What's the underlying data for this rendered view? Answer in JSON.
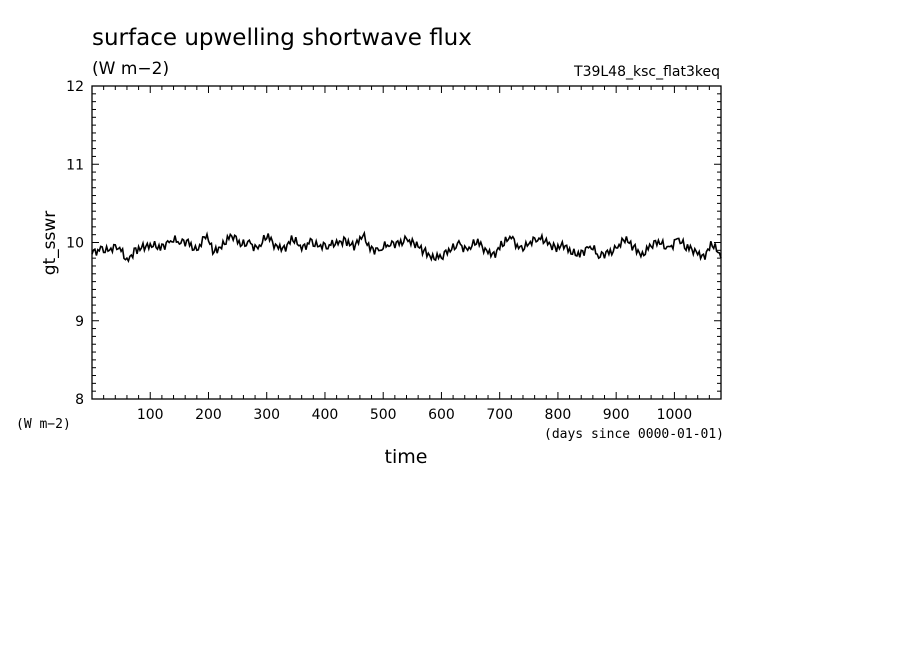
{
  "chart_data": {
    "type": "line",
    "title": "surface upwelling shortwave flux",
    "units": "(W m−2)",
    "run_name": "T39L48_ksc_flat3keq",
    "ylabel": "gt_sswr",
    "ylabel_units": "(W m−2)",
    "xlabel": "time",
    "xlabel_units": "(days since 0000-01-01)",
    "xlim": [
      0,
      1080
    ],
    "ylim": [
      8,
      12
    ],
    "xticks": [
      100,
      200,
      300,
      400,
      500,
      600,
      700,
      800,
      900,
      1000
    ],
    "yticks": [
      8,
      9,
      10,
      11,
      12
    ],
    "grid": false,
    "series": [
      {
        "x": [
          0,
          15,
          30,
          45,
          60,
          75,
          90,
          105,
          120,
          135,
          150,
          165,
          180,
          195,
          210,
          225,
          240,
          255,
          270,
          285,
          300,
          315,
          330,
          345,
          360,
          375,
          390,
          405,
          420,
          435,
          450,
          465,
          480,
          495,
          510,
          525,
          540,
          555,
          570,
          585,
          600,
          615,
          630,
          645,
          660,
          675,
          690,
          705,
          720,
          735,
          750,
          765,
          780,
          795,
          810,
          825,
          840,
          855,
          870,
          885,
          900,
          915,
          930,
          945,
          960,
          975,
          990,
          1005,
          1020,
          1035,
          1050,
          1065,
          1080
        ],
        "y": [
          9.85,
          9.95,
          9.9,
          9.92,
          9.8,
          9.93,
          9.9,
          9.95,
          9.98,
          10.02,
          9.98,
          10.04,
          9.9,
          10.05,
          9.88,
          10.02,
          10.08,
          9.95,
          10.03,
          9.92,
          10.05,
          9.98,
          9.96,
          10.02,
          9.9,
          10.05,
          9.95,
          9.92,
          10.03,
          10.05,
          9.9,
          10.08,
          9.95,
          9.9,
          9.95,
          10.02,
          10.05,
          9.93,
          9.9,
          9.85,
          9.8,
          9.88,
          10.02,
          9.9,
          9.98,
          9.93,
          9.88,
          9.95,
          10.05,
          9.95,
          9.98,
          10.02,
          10.05,
          9.95,
          9.92,
          9.85,
          9.9,
          9.95,
          9.8,
          9.9,
          9.93,
          10.0,
          9.95,
          9.88,
          9.95,
          9.98,
          9.95,
          10.05,
          9.9,
          9.92,
          9.85,
          9.95,
          9.8
        ]
      }
    ]
  }
}
